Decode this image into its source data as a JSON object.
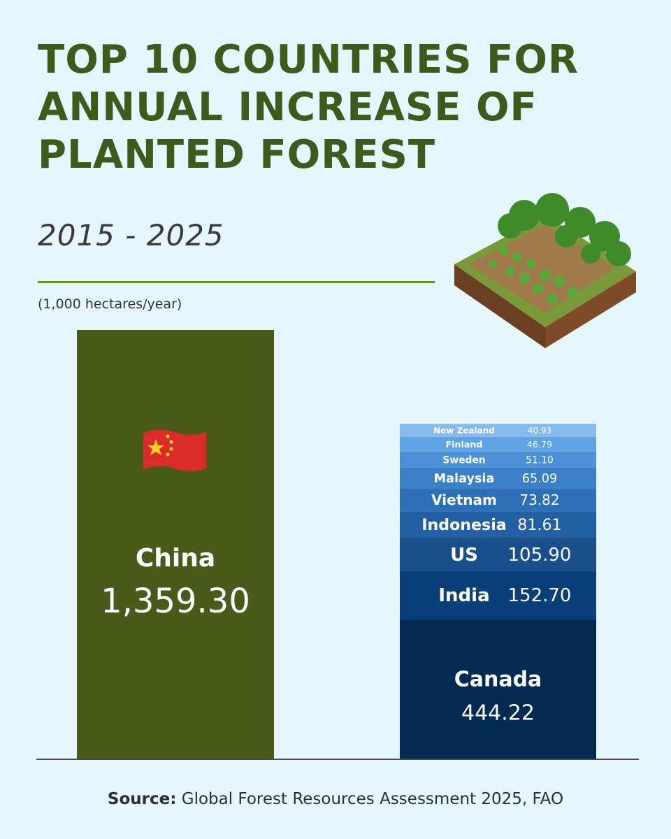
{
  "title": {
    "strong": "TOP 10",
    "rest": " COUNTRIES FOR ANNUAL INCREASE OF PLANTED FOREST"
  },
  "period": "2015 - 2025",
  "unit": "(1,000 hectares/year)",
  "source": {
    "label": "Source:",
    "text": " Global Forest Resources Assessment 2025, FAO"
  },
  "colors": {
    "china_bar": "#4a5a1a",
    "accent_rule": "#6f8f1f",
    "stack_shades": [
      "#022a52",
      "#0b3f79",
      "#194f8c",
      "#2260a3",
      "#2d70b8",
      "#3a80c9",
      "#4c91d6",
      "#5fa3e3",
      "#86baec",
      "#b6d3ef"
    ]
  },
  "chart_data": {
    "type": "bar",
    "ylabel": "(1,000 hectares/year)",
    "bars": [
      {
        "name": "China",
        "value_label": "1,359.30",
        "value": 1359.3,
        "flag": "china-flag-icon"
      },
      {
        "name": "stack",
        "segments": [
          {
            "name": "Canada",
            "value_label": "444.22",
            "value": 444.22
          },
          {
            "name": "India",
            "value_label": "152.70",
            "value": 152.7
          },
          {
            "name": "US",
            "value_label": "105.90",
            "value": 105.9
          },
          {
            "name": "Indonesia",
            "value_label": "81.61",
            "value": 81.61
          },
          {
            "name": "Vietnam",
            "value_label": "73.82",
            "value": 73.82
          },
          {
            "name": "Malaysia",
            "value_label": "65.09",
            "value": 65.09
          },
          {
            "name": "Sweden",
            "value_label": "51.10",
            "value": 51.1
          },
          {
            "name": "Finland",
            "value_label": "46.79",
            "value": 46.79
          },
          {
            "name": "New Zealand",
            "value_label": "40.93",
            "value": 40.93
          }
        ]
      }
    ]
  }
}
